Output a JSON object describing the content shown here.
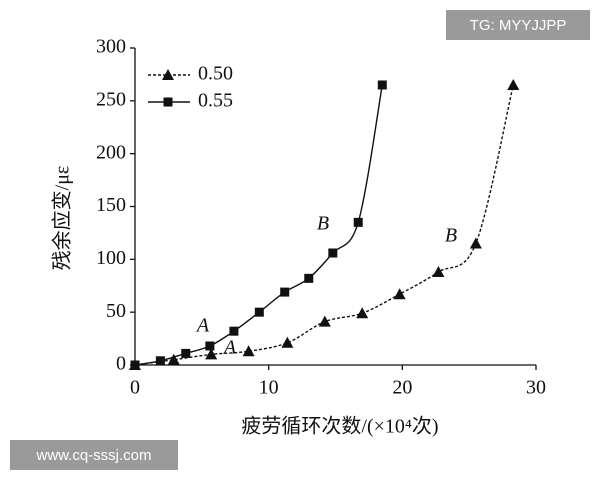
{
  "chart_data": {
    "type": "line",
    "x_label": "疲劳循环次数/(×10⁴次)",
    "y_label": "残余应变/με",
    "xlim": [
      0,
      30
    ],
    "xticks": [
      0,
      10,
      20,
      30
    ],
    "ylim": [
      0,
      300
    ],
    "yticks": [
      0,
      50,
      100,
      150,
      200,
      250,
      300
    ],
    "legend": "upper left",
    "series": [
      {
        "name": "0.50",
        "color": "#111111",
        "marker": "triangle",
        "linestyle": "dashed",
        "x": [
          0,
          2.9,
          5.7,
          8.5,
          11.4,
          14.2,
          17,
          19.8,
          22.7,
          25.5,
          28.3
        ],
        "values": [
          0,
          5,
          10,
          13,
          21,
          41,
          49,
          67,
          88,
          115,
          265
        ]
      },
      {
        "name": "0.55",
        "color": "#111111",
        "marker": "square",
        "linestyle": "solid",
        "x": [
          0,
          1.9,
          3.8,
          5.6,
          7.4,
          9.3,
          11.2,
          13,
          14.8,
          16.7,
          18.5
        ],
        "values": [
          0,
          4,
          11,
          18,
          32,
          50,
          69,
          82,
          106,
          135,
          265
        ]
      }
    ],
    "annotations": [
      "A",
      "A",
      "B",
      "B"
    ]
  },
  "watermarks": [
    "TG: MYYJJPP",
    "www.cq-sssj.com"
  ]
}
